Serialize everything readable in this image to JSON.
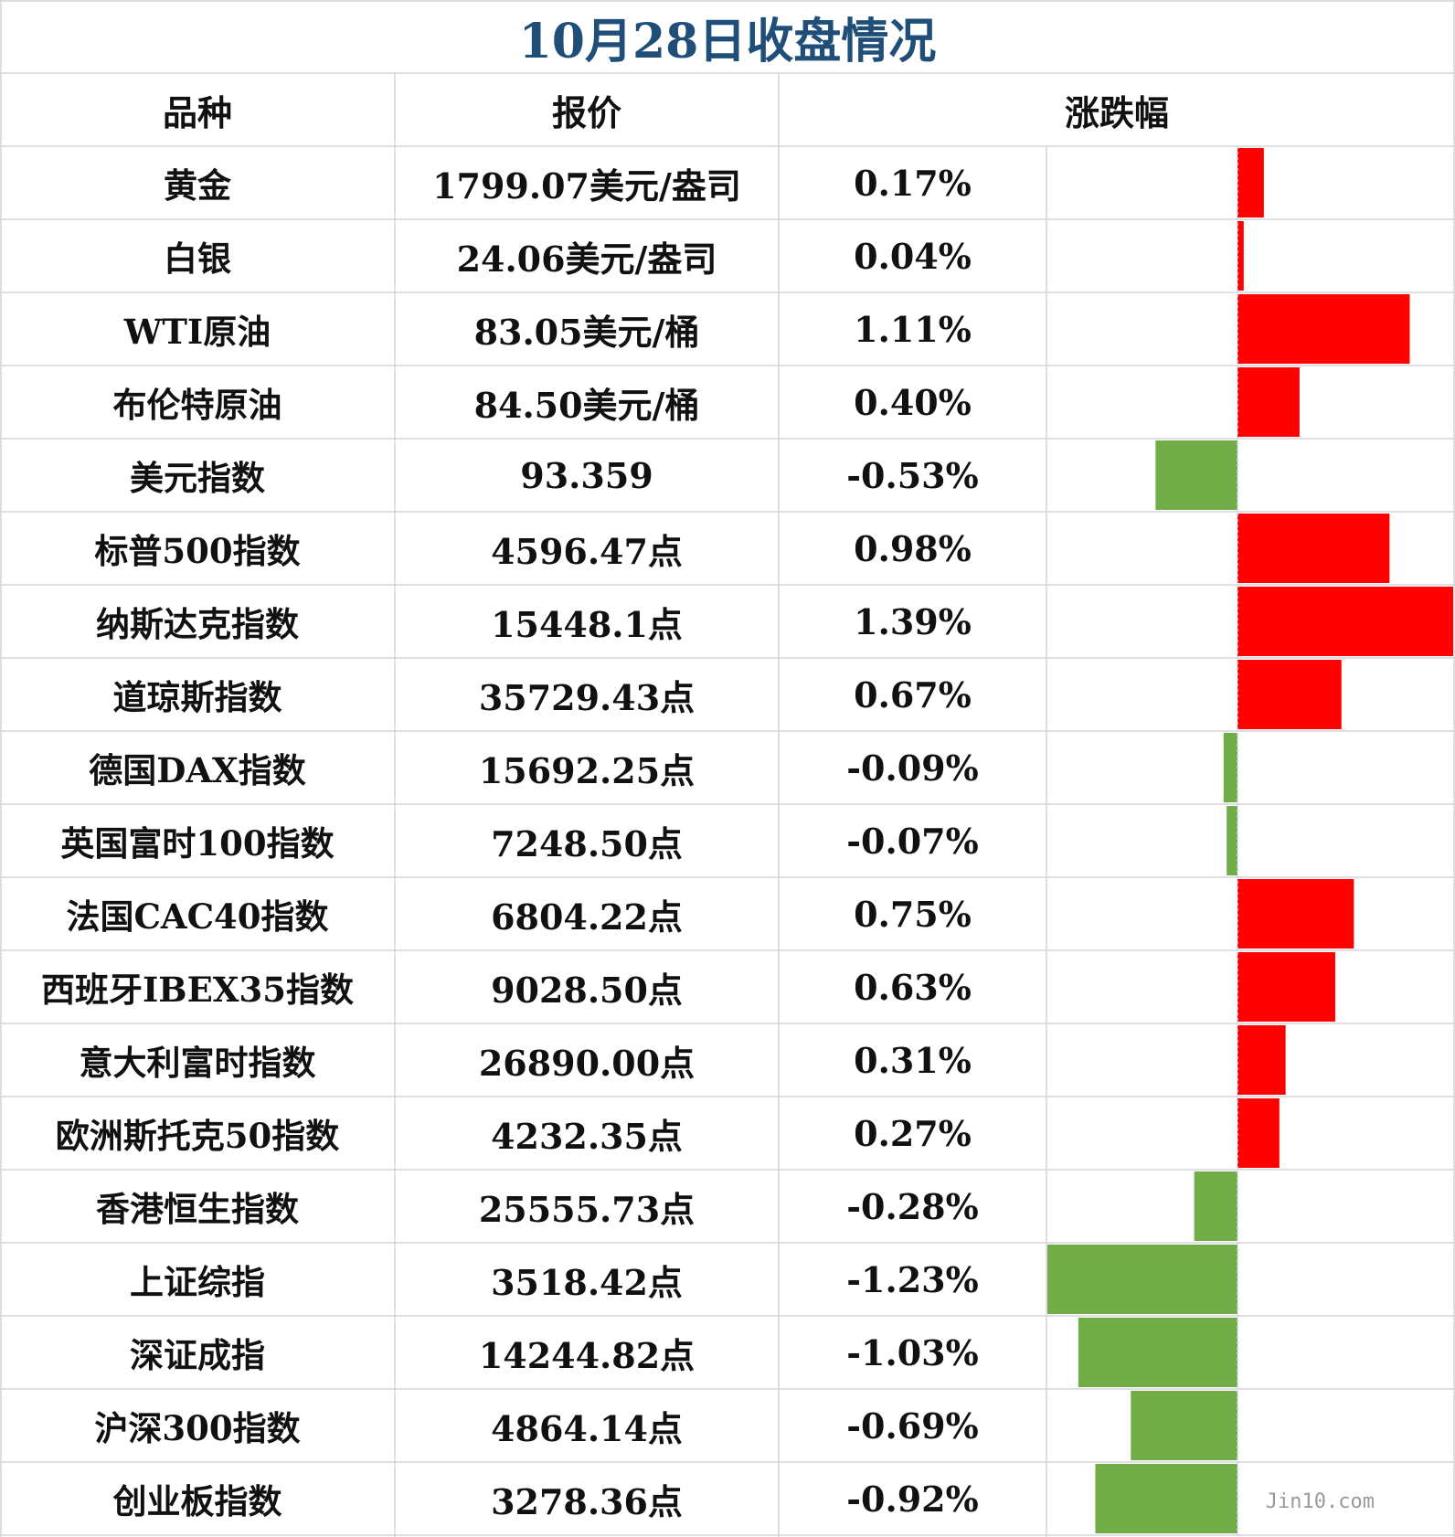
{
  "title": "10月28日收盘情况",
  "headers": {
    "name": "品种",
    "price": "报价",
    "change": "涨跌幅"
  },
  "colors": {
    "title": "#1f4e79",
    "up": "#ff0000",
    "down": "#70ad47",
    "grid": "#d0d4dc"
  },
  "watermark": "Jin10.com",
  "chart_data": {
    "type": "bar",
    "orientation": "horizontal",
    "categories": [
      "黄金",
      "白银",
      "WTI原油",
      "布伦特原油",
      "美元指数",
      "标普500指数",
      "纳斯达克指数",
      "道琼斯指数",
      "德国DAX指数",
      "英国富时100指数",
      "法国CAC40指数",
      "西班牙IBEX35指数",
      "意大利富时指数",
      "欧洲斯托克50指数",
      "香港恒生指数",
      "上证综指",
      "深证成指",
      "沪深300指数",
      "创业板指数"
    ],
    "values": [
      0.17,
      0.04,
      1.11,
      0.4,
      -0.53,
      0.98,
      1.39,
      0.67,
      -0.09,
      -0.07,
      0.75,
      0.63,
      0.31,
      0.27,
      -0.28,
      -1.23,
      -1.03,
      -0.69,
      -0.92
    ],
    "value_labels": [
      "0.17%",
      "0.04%",
      "1.11%",
      "0.40%",
      "-0.53%",
      "0.98%",
      "1.39%",
      "0.67%",
      "-0.09%",
      "-0.07%",
      "0.75%",
      "0.63%",
      "0.31%",
      "0.27%",
      "-0.28%",
      "-1.23%",
      "-1.03%",
      "-0.69%",
      "-0.92%"
    ],
    "prices": [
      "1799.07美元/盎司",
      "24.06美元/盎司",
      "83.05美元/桶",
      "84.50美元/桶",
      "93.359",
      "4596.47点",
      "15448.1点",
      "35729.43点",
      "15692.25点",
      "7248.50点",
      "6804.22点",
      "9028.50点",
      "26890.00点",
      "4232.35点",
      "25555.73点",
      "3518.42点",
      "14244.82点",
      "4864.14点",
      "3278.36点"
    ],
    "xlim": [
      -1.23,
      1.39
    ],
    "legend": "none"
  }
}
